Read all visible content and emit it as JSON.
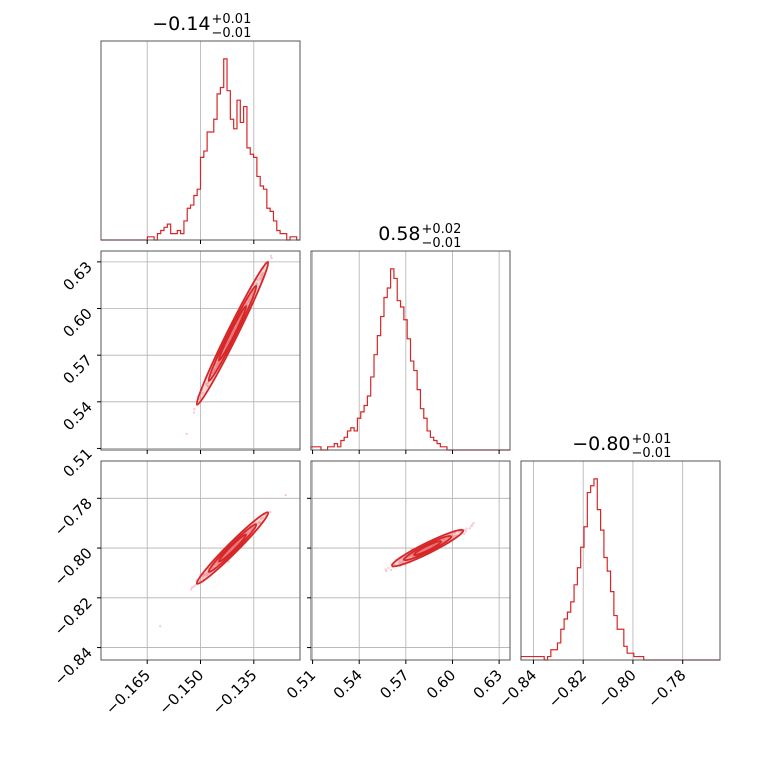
{
  "chart_data": {
    "type": "corner",
    "grid": true,
    "color": "#d62728",
    "point_color": "#f4b6bd",
    "parameters": [
      {
        "range": [
          -0.178,
          -0.122
        ],
        "ticks": [
          -0.165,
          -0.15,
          -0.135
        ],
        "tick_labels": [
          "−0.165",
          "−0.150",
          "−0.135"
        ]
      },
      {
        "range": [
          0.509,
          0.637
        ],
        "ticks": [
          0.51,
          0.54,
          0.57,
          0.6,
          0.63
        ],
        "tick_labels": [
          "0.51",
          "0.54",
          "0.57",
          "0.60",
          "0.63"
        ]
      },
      {
        "range": [
          -0.845,
          -0.765
        ],
        "ticks": [
          -0.84,
          -0.82,
          -0.8,
          -0.78
        ],
        "tick_labels": [
          "−0.84",
          "−0.82",
          "−0.80",
          "−0.78"
        ]
      }
    ],
    "titles": [
      {
        "value": "−0.14",
        "plus": "+0.01",
        "minus": "−0.01"
      },
      {
        "value": "0.58",
        "plus": "+0.02",
        "minus": "−0.01"
      },
      {
        "value": "−0.80",
        "plus": "+0.01",
        "minus": "−0.01"
      }
    ],
    "histograms": [
      [
        0,
        0,
        0,
        0,
        0,
        0,
        0,
        0,
        0,
        0,
        0,
        0,
        0,
        0,
        1,
        1,
        0,
        2,
        3,
        4,
        5,
        2,
        2,
        3,
        2,
        6,
        10,
        11,
        14,
        16,
        26,
        28,
        34,
        34,
        38,
        46,
        48,
        57,
        47,
        38,
        35,
        44,
        37,
        42,
        29,
        27,
        26,
        20,
        17,
        16,
        10,
        9,
        6,
        3,
        2,
        2,
        0,
        1,
        1,
        0
      ],
      [
        1,
        1,
        1,
        0,
        0,
        1,
        1,
        2,
        1,
        3,
        4,
        6,
        7,
        6,
        10,
        12,
        14,
        17,
        23,
        30,
        36,
        42,
        48,
        51,
        57,
        54,
        47,
        45,
        41,
        35,
        28,
        25,
        19,
        13,
        10,
        6,
        4,
        3,
        2,
        1,
        1,
        0,
        0,
        0,
        0,
        0,
        0,
        0,
        0,
        0,
        0,
        0,
        0,
        0,
        0,
        0,
        0,
        0,
        0,
        0
      ],
      [
        1,
        1,
        1,
        1,
        1,
        1,
        1,
        0,
        1,
        3,
        3,
        5,
        9,
        12,
        14,
        17,
        22,
        27,
        33,
        39,
        49,
        51,
        53,
        44,
        38,
        30,
        26,
        20,
        13,
        9,
        9,
        4,
        2,
        2,
        1,
        1,
        1,
        0,
        0,
        0,
        0,
        0,
        0,
        0,
        0,
        0,
        0,
        0,
        0,
        0,
        0,
        0,
        0,
        0,
        0,
        0,
        0,
        0,
        0,
        0
      ]
    ],
    "correlations": [
      {
        "x": 0,
        "y": 1,
        "center": [
          -0.141,
          0.584
        ],
        "slope": 4.6
      },
      {
        "x": 0,
        "y": 2,
        "center": [
          -0.141,
          -0.8
        ],
        "slope": 1.43
      },
      {
        "x": 1,
        "y": 2,
        "center": [
          0.584,
          -0.8
        ],
        "slope": 0.31
      }
    ]
  }
}
